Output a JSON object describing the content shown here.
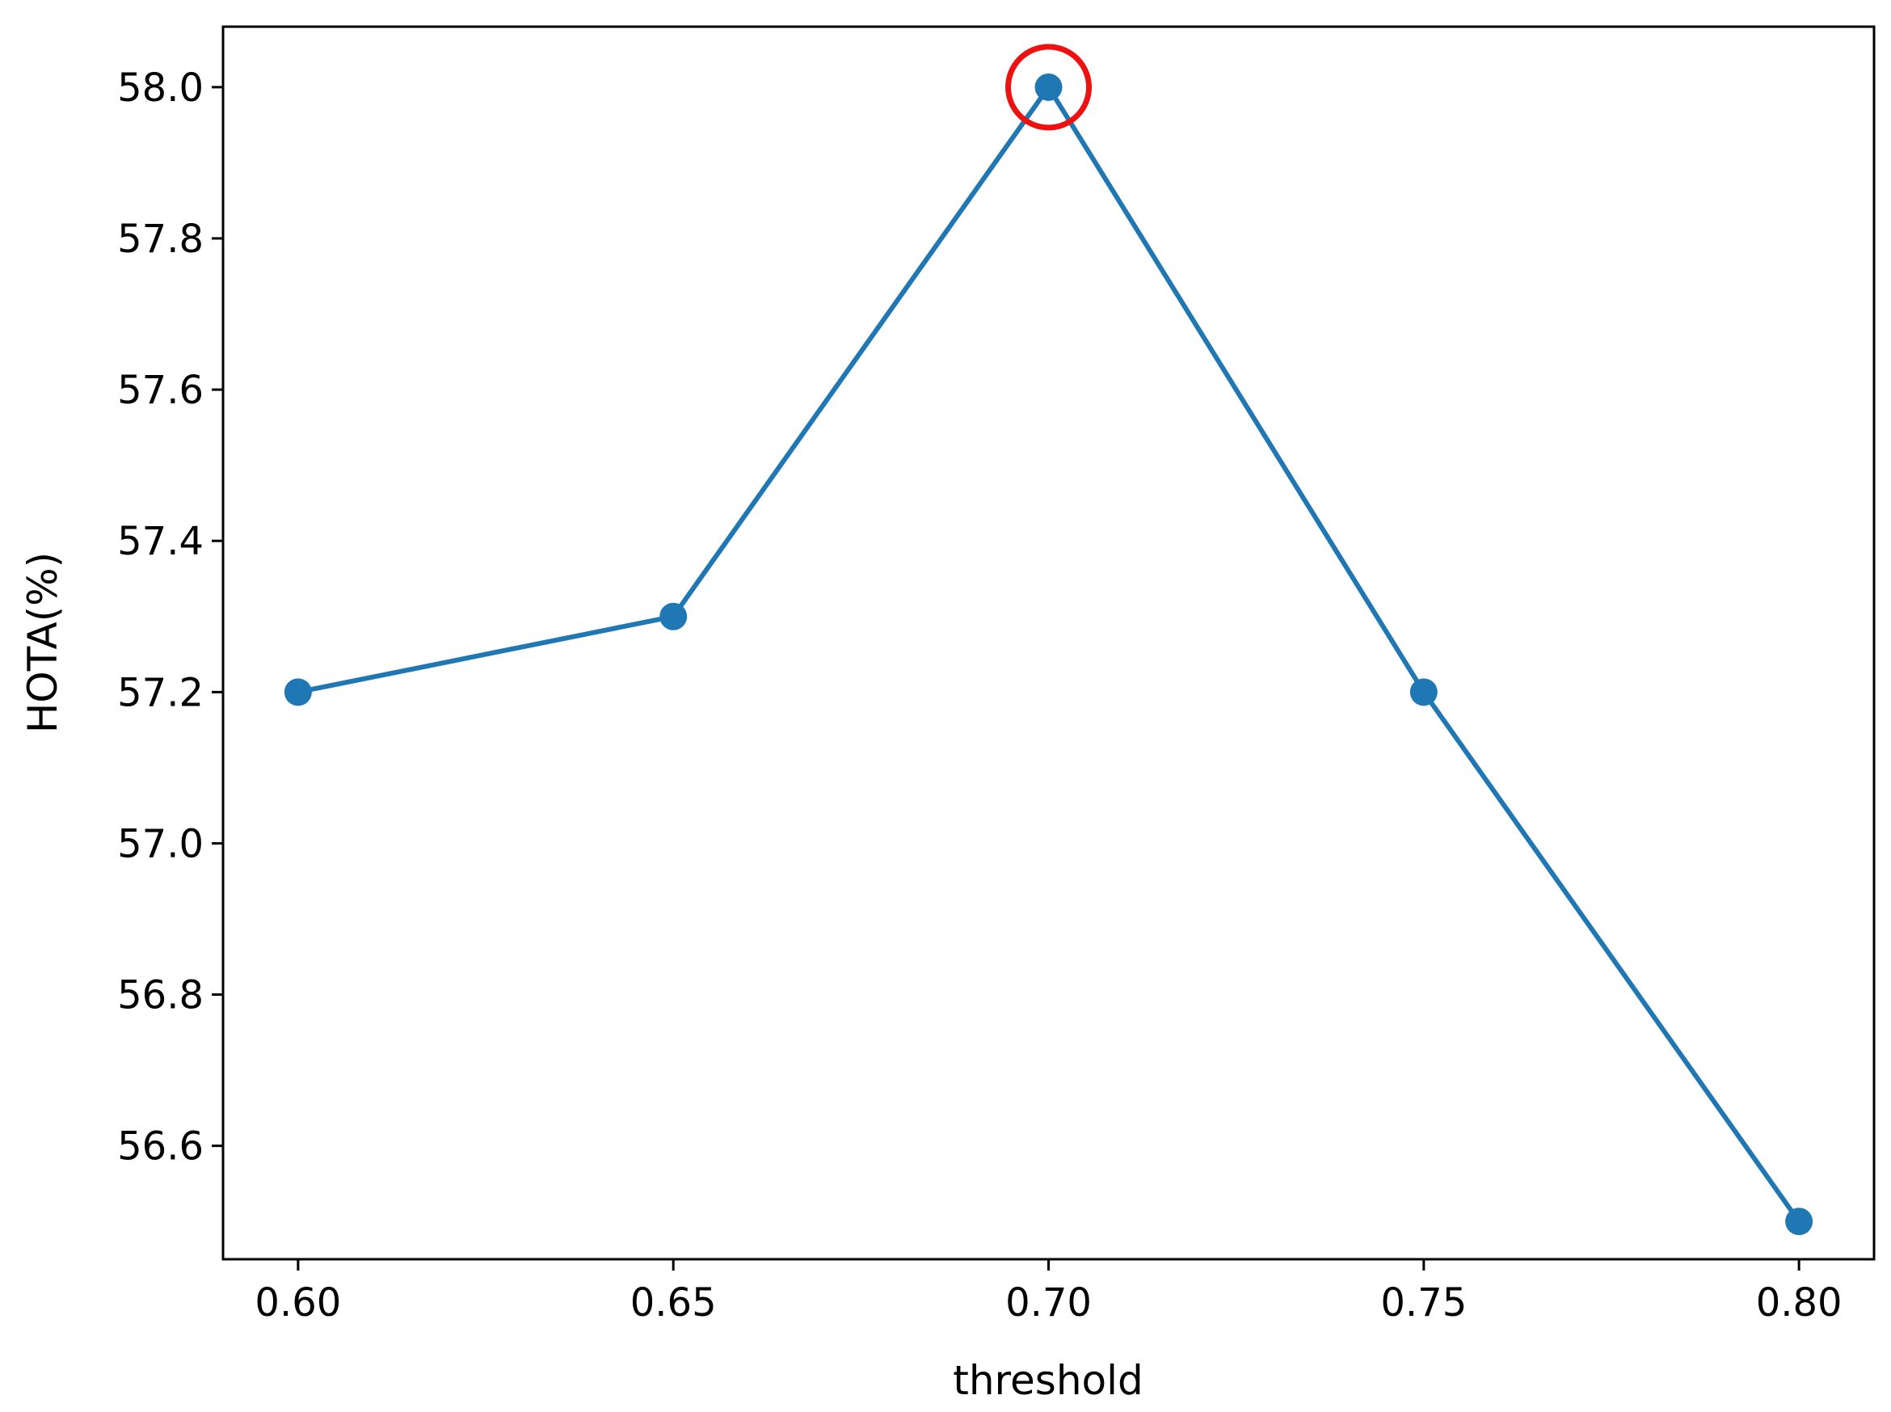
{
  "chart_data": {
    "type": "line",
    "title": "",
    "xlabel": "threshold",
    "ylabel": "HOTA(%)",
    "x": [
      0.6,
      0.65,
      0.7,
      0.75,
      0.8
    ],
    "series": [
      {
        "values": [
          57.2,
          57.3,
          58.0,
          57.2,
          56.5
        ],
        "color": "#1f77b4"
      }
    ],
    "xlim": [
      0.59,
      0.81
    ],
    "ylim": [
      56.45,
      58.08
    ],
    "xticks": [
      "0.60",
      "0.65",
      "0.70",
      "0.75",
      "0.80"
    ],
    "yticks": [
      "56.6",
      "56.8",
      "57.0",
      "57.2",
      "57.4",
      "57.6",
      "57.8",
      "58.0"
    ],
    "grid": false,
    "highlight": {
      "x": 0.7,
      "y": 58.0,
      "color": "#ee1111"
    }
  }
}
